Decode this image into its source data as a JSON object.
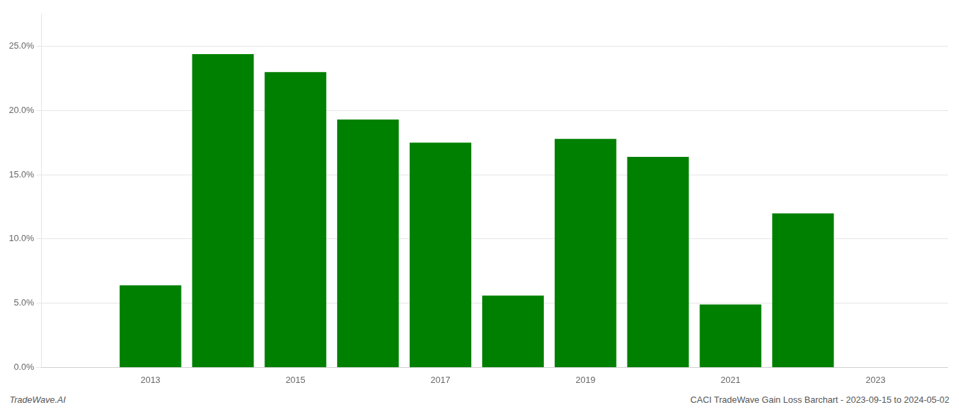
{
  "chart_data": {
    "type": "bar",
    "x": [
      2013,
      2014,
      2015,
      2016,
      2017,
      2018,
      2019,
      2020,
      2021,
      2022
    ],
    "values": [
      0.064,
      0.244,
      0.23,
      0.193,
      0.175,
      0.056,
      0.178,
      0.164,
      0.049,
      0.12
    ],
    "color": "#008000",
    "xlim": [
      2011.5,
      2024.0
    ],
    "xticks": [
      2013,
      2015,
      2017,
      2019,
      2021,
      2023
    ],
    "ylim": [
      0,
      0.275
    ],
    "yticks": [
      {
        "value": 0.0,
        "label": "0.0%"
      },
      {
        "value": 0.05,
        "label": "5.0%"
      },
      {
        "value": 0.1,
        "label": "10.0%"
      },
      {
        "value": 0.15,
        "label": "15.0%"
      },
      {
        "value": 0.2,
        "label": "20.0%"
      },
      {
        "value": 0.25,
        "label": "25.0%"
      }
    ],
    "grid": "y",
    "annotations": [
      "TradeWave.AI",
      "CACI TradeWave Gain Loss Barchart - 2023-09-15 to 2024-05-02"
    ]
  }
}
